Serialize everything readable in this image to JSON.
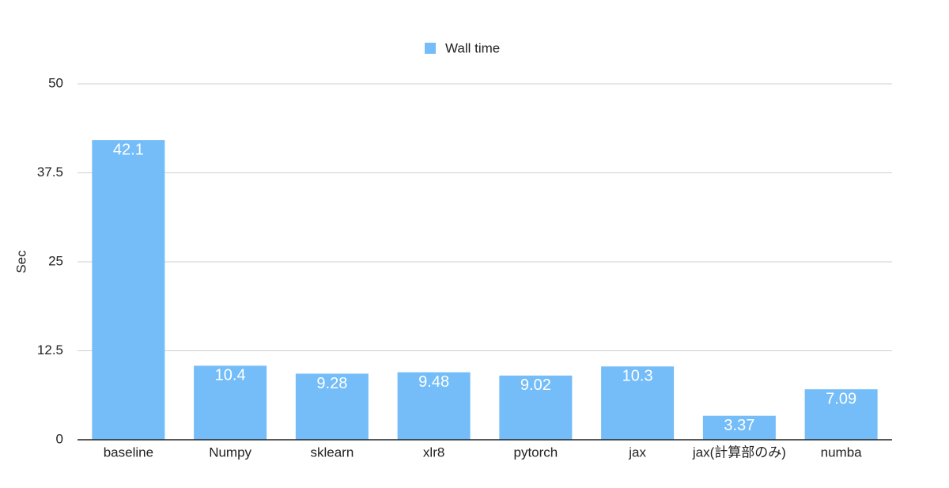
{
  "chart_data": {
    "type": "bar",
    "legend": "Wall time",
    "legend_position": "top",
    "ylabel": "Sec",
    "categories": [
      "baseline",
      "Numpy",
      "sklearn",
      "xlr8",
      "pytorch",
      "jax",
      "jax(計算部のみ)",
      "numba"
    ],
    "series": [
      {
        "name": "Wall time",
        "color": "#74bdf8",
        "values": [
          42.1,
          10.4,
          9.28,
          9.48,
          9.02,
          10.3,
          3.37,
          7.09
        ]
      }
    ],
    "ylim": [
      0,
      50
    ],
    "yticks": [
      0,
      12.5,
      25,
      37.5,
      50
    ],
    "grid": true
  }
}
